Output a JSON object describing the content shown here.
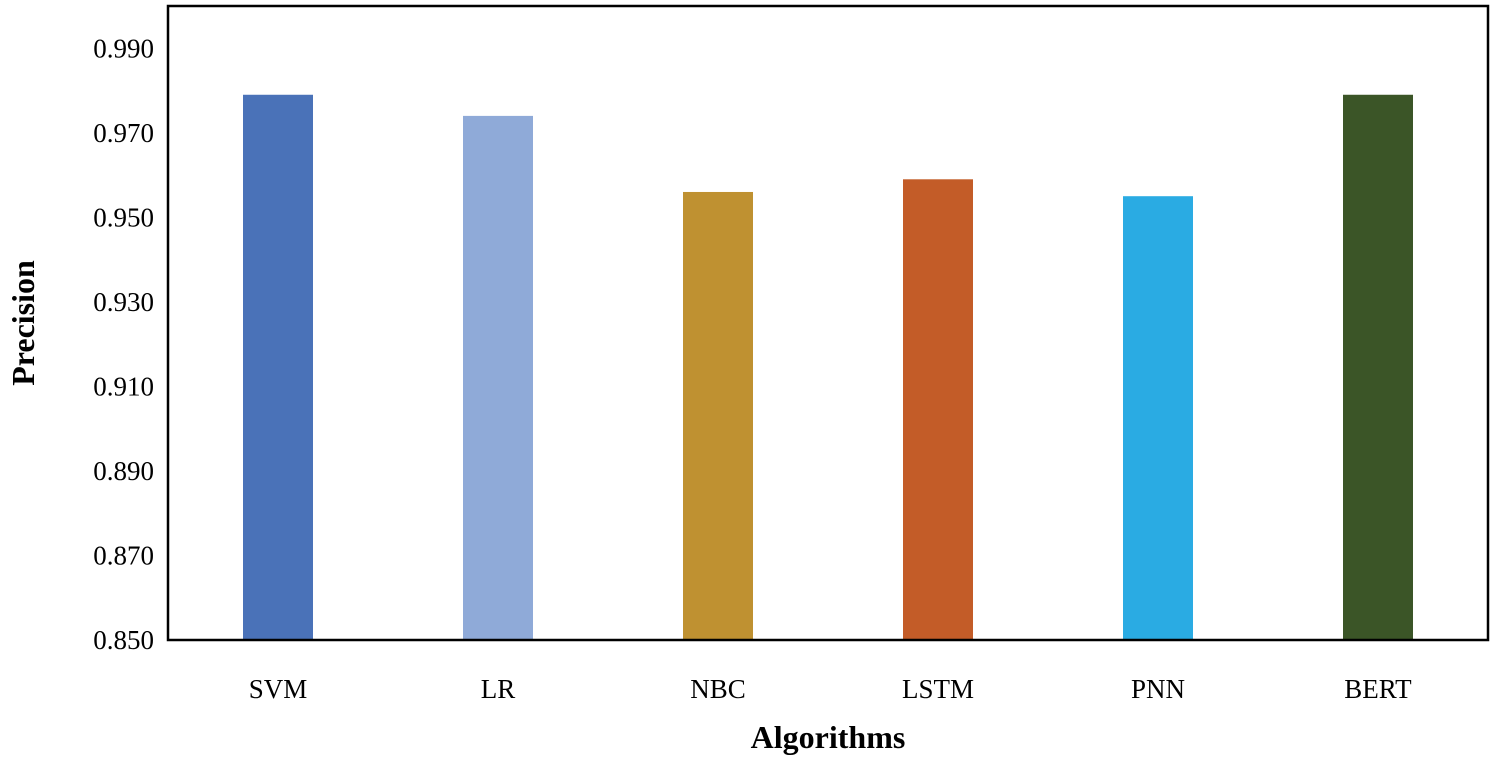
{
  "chart_data": {
    "type": "bar",
    "xlabel": "Algorithms",
    "ylabel": "Precision",
    "ylim": [
      0.85,
      1.0
    ],
    "yticks": [
      "0.850",
      "0.870",
      "0.890",
      "0.910",
      "0.930",
      "0.950",
      "0.970",
      "0.990"
    ],
    "ytick_values": [
      0.85,
      0.87,
      0.89,
      0.91,
      0.93,
      0.95,
      0.97,
      0.99
    ],
    "categories": [
      "SVM",
      "LR",
      "NBC",
      "LSTM",
      "PNN",
      "BERT"
    ],
    "values": [
      0.979,
      0.974,
      0.956,
      0.959,
      0.955,
      0.979
    ],
    "colors": [
      "#4a72b8",
      "#8faad8",
      "#bf9131",
      "#c35c28",
      "#2aabe3",
      "#3b5527"
    ],
    "grid": false,
    "legend": "none"
  }
}
